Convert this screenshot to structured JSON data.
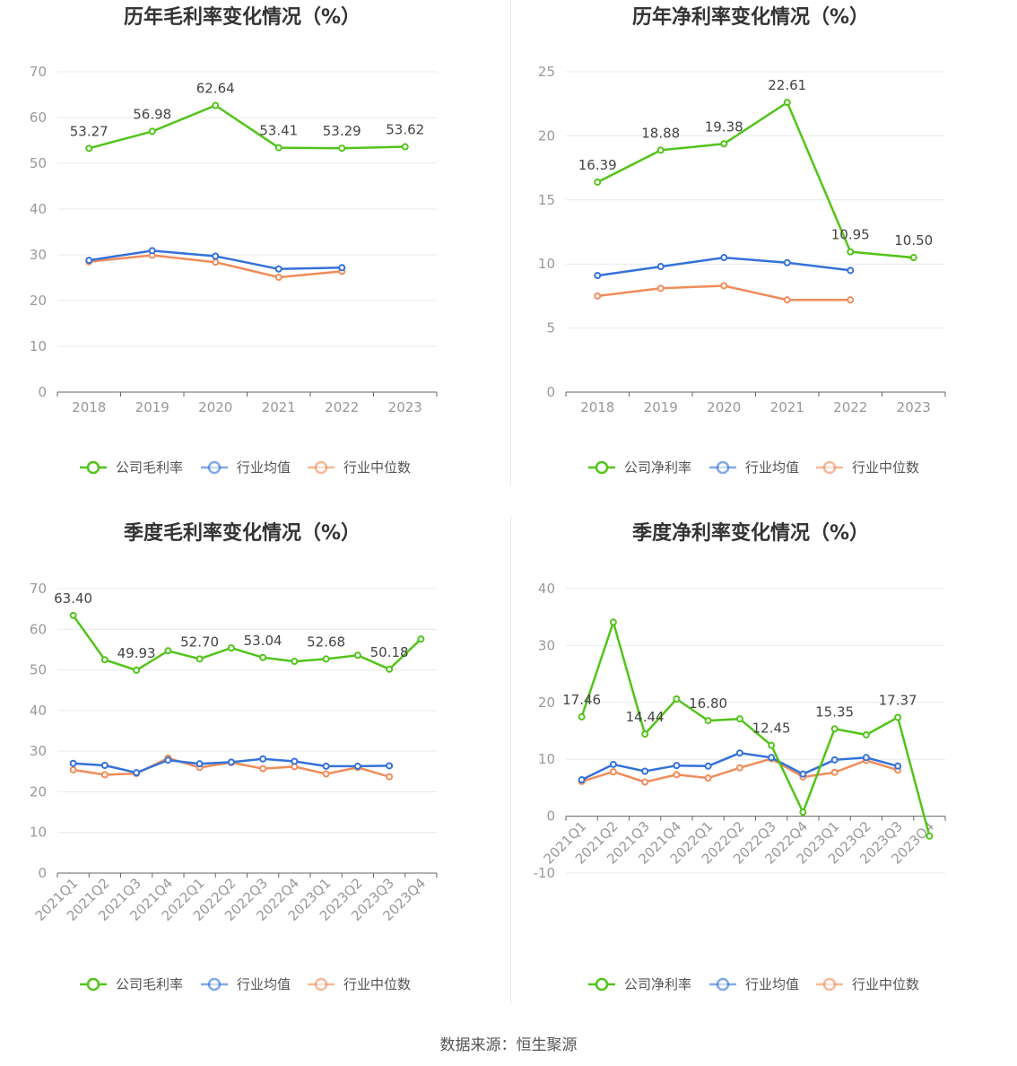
{
  "source": "数据来源：恒生聚源",
  "colors": {
    "company": "#52c41a",
    "avg": "#3471d9",
    "median": "#f08c5a",
    "grid": "#e6e9f0",
    "axis": "#666666"
  },
  "legend_icon": "circle-line-icon",
  "chart_data": [
    {
      "type": "line",
      "title": "历年毛利率变化情况（%）",
      "categories": [
        "2018",
        "2019",
        "2020",
        "2021",
        "2022",
        "2023"
      ],
      "ylim": [
        0,
        70
      ],
      "yticks": [
        0,
        10,
        20,
        30,
        40,
        50,
        60,
        70
      ],
      "grid": true,
      "legend_position": "bottom",
      "rotate_x_labels": false,
      "series": [
        {
          "name": "公司毛利率",
          "key": "company",
          "values": [
            53.27,
            56.98,
            62.64,
            53.41,
            53.29,
            53.62
          ],
          "labels": [
            "53.27",
            "56.98",
            "62.64",
            "53.41",
            "53.29",
            "53.62"
          ]
        },
        {
          "name": "行业均值",
          "key": "avg",
          "values": [
            28.8,
            30.9,
            29.7,
            26.9,
            27.2,
            null
          ],
          "labels": []
        },
        {
          "name": "行业中位数",
          "key": "median",
          "values": [
            28.5,
            29.9,
            28.4,
            25.1,
            26.4,
            null
          ],
          "labels": []
        }
      ]
    },
    {
      "type": "line",
      "title": "历年净利率变化情况（%）",
      "categories": [
        "2018",
        "2019",
        "2020",
        "2021",
        "2022",
        "2023"
      ],
      "ylim": [
        0,
        25
      ],
      "yticks": [
        0,
        5,
        10,
        15,
        20,
        25
      ],
      "grid": true,
      "legend_position": "bottom",
      "rotate_x_labels": false,
      "series": [
        {
          "name": "公司净利率",
          "key": "company",
          "values": [
            16.39,
            18.88,
            19.38,
            22.61,
            10.95,
            10.5
          ],
          "labels": [
            "16.39",
            "18.88",
            "19.38",
            "22.61",
            "10.95",
            "10.50"
          ]
        },
        {
          "name": "行业均值",
          "key": "avg",
          "values": [
            9.1,
            9.8,
            10.5,
            10.1,
            9.5,
            null
          ],
          "labels": []
        },
        {
          "name": "行业中位数",
          "key": "median",
          "values": [
            7.5,
            8.1,
            8.3,
            7.2,
            7.2,
            null
          ],
          "labels": []
        }
      ]
    },
    {
      "type": "line",
      "title": "季度毛利率变化情况（%）",
      "categories": [
        "2021Q1",
        "2021Q2",
        "2021Q3",
        "2021Q4",
        "2022Q1",
        "2022Q2",
        "2022Q3",
        "2022Q4",
        "2023Q1",
        "2023Q2",
        "2023Q3",
        "2023Q4"
      ],
      "ylim": [
        0,
        70
      ],
      "yticks": [
        0,
        10,
        20,
        30,
        40,
        50,
        60,
        70
      ],
      "grid": true,
      "legend_position": "bottom",
      "rotate_x_labels": true,
      "series": [
        {
          "name": "公司毛利率",
          "key": "company",
          "values": [
            63.4,
            52.5,
            49.93,
            54.7,
            52.7,
            55.4,
            53.04,
            52.1,
            52.68,
            53.6,
            50.18,
            57.6
          ],
          "labels": [
            "63.40",
            "",
            "49.93",
            "",
            "52.70",
            "",
            "53.04",
            "",
            "52.68",
            "",
            "50.18",
            ""
          ]
        },
        {
          "name": "行业均值",
          "key": "avg",
          "values": [
            27.0,
            26.5,
            24.7,
            27.8,
            26.9,
            27.3,
            28.1,
            27.5,
            26.3,
            26.3,
            26.4,
            null
          ],
          "labels": []
        },
        {
          "name": "行业中位数",
          "key": "median",
          "values": [
            25.4,
            24.2,
            24.5,
            28.3,
            26.0,
            27.2,
            25.7,
            26.2,
            24.4,
            26.0,
            23.7,
            null
          ],
          "labels": []
        }
      ]
    },
    {
      "type": "line",
      "title": "季度净利率变化情况（%）",
      "categories": [
        "2021Q1",
        "2021Q2",
        "2021Q3",
        "2021Q4",
        "2022Q1",
        "2022Q2",
        "2022Q3",
        "2022Q4",
        "2023Q1",
        "2023Q2",
        "2023Q3",
        "2023Q4"
      ],
      "ylim": [
        -10,
        40
      ],
      "yticks": [
        -10,
        0,
        10,
        20,
        30,
        40
      ],
      "grid": true,
      "legend_position": "bottom",
      "rotate_x_labels": true,
      "series": [
        {
          "name": "公司净利率",
          "key": "company",
          "values": [
            17.46,
            34.1,
            14.44,
            20.6,
            16.8,
            17.1,
            12.45,
            0.7,
            15.35,
            14.3,
            17.37,
            -3.5
          ],
          "labels": [
            "17.46",
            "",
            "14.44",
            "",
            "16.80",
            "",
            "12.45",
            "",
            "15.35",
            "",
            "17.37",
            ""
          ]
        },
        {
          "name": "行业均值",
          "key": "avg",
          "values": [
            6.4,
            9.1,
            7.9,
            8.9,
            8.8,
            11.1,
            10.3,
            7.4,
            9.9,
            10.3,
            8.8,
            null
          ],
          "labels": []
        },
        {
          "name": "行业中位数",
          "key": "median",
          "values": [
            6.1,
            7.8,
            6.0,
            7.3,
            6.7,
            8.5,
            10.1,
            6.9,
            7.7,
            9.8,
            8.1,
            null
          ],
          "labels": []
        }
      ]
    }
  ]
}
